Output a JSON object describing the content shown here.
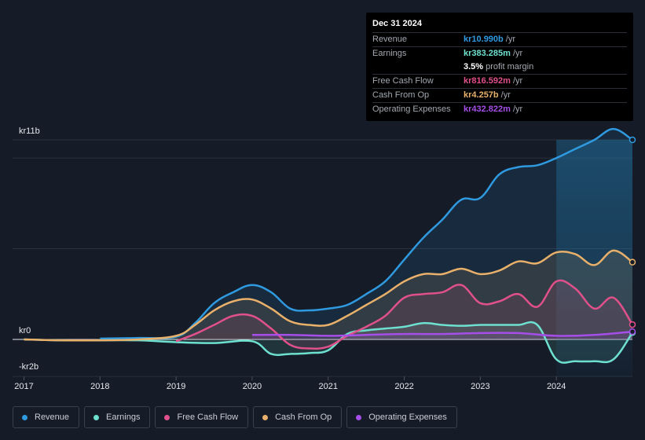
{
  "tooltip": {
    "date": "Dec 31 2024",
    "rows": [
      {
        "label": "Revenue",
        "value": "kr10.990b",
        "unit": "/yr",
        "color": "#2f9ae0"
      },
      {
        "label": "Earnings",
        "value": "kr383.285m",
        "unit": "/yr",
        "color": "#6ee0cf"
      },
      {
        "label": "",
        "value": "3.5%",
        "unit": "profit margin",
        "color": "#ffffff"
      },
      {
        "label": "Free Cash Flow",
        "value": "kr816.592m",
        "unit": "/yr",
        "color": "#e0508a"
      },
      {
        "label": "Cash From Op",
        "value": "kr4.257b",
        "unit": "/yr",
        "color": "#e8b06a"
      },
      {
        "label": "Operating Expenses",
        "value": "kr432.822m",
        "unit": "/yr",
        "color": "#a54ee8"
      }
    ]
  },
  "legend": [
    {
      "label": "Revenue",
      "color": "#2f9ae0"
    },
    {
      "label": "Earnings",
      "color": "#6ee0cf"
    },
    {
      "label": "Free Cash Flow",
      "color": "#e0508a"
    },
    {
      "label": "Cash From Op",
      "color": "#e8b06a"
    },
    {
      "label": "Operating Expenses",
      "color": "#a54ee8"
    }
  ],
  "chart_data": {
    "type": "area",
    "title": "",
    "xlabel": "",
    "ylabel": "",
    "units": "kr (billions)",
    "y_tick_labels": [
      "kr11b",
      "kr0",
      "-kr2b"
    ],
    "ylim": [
      -2,
      11
    ],
    "xlim": [
      2016.85,
      2025.0
    ],
    "x_tick_labels": [
      "2017",
      "2018",
      "2019",
      "2020",
      "2021",
      "2022",
      "2023",
      "2024"
    ],
    "x_ticks": [
      2017,
      2018,
      2019,
      2020,
      2021,
      2022,
      2023,
      2024
    ],
    "highlight_from": 2024.0,
    "series": [
      {
        "name": "Revenue",
        "color": "#2f9ae0",
        "x": [
          2018.0,
          2018.5,
          2019.0,
          2019.25,
          2019.5,
          2019.75,
          2020.0,
          2020.25,
          2020.5,
          2020.75,
          2021.0,
          2021.25,
          2021.5,
          2021.75,
          2022.0,
          2022.25,
          2022.5,
          2022.75,
          2023.0,
          2023.25,
          2023.5,
          2023.75,
          2024.0,
          2024.25,
          2024.5,
          2024.75,
          2025.0
        ],
        "values": [
          0.05,
          0.08,
          0.15,
          0.9,
          2.0,
          2.6,
          3.0,
          2.6,
          1.7,
          1.6,
          1.7,
          1.9,
          2.5,
          3.2,
          4.4,
          5.6,
          6.6,
          7.7,
          7.8,
          9.1,
          9.5,
          9.6,
          10.0,
          10.5,
          11.0,
          11.6,
          11.0
        ]
      },
      {
        "name": "Earnings",
        "color": "#6ee0cf",
        "x": [
          2017.0,
          2017.5,
          2018.0,
          2018.5,
          2019.0,
          2019.5,
          2020.0,
          2020.25,
          2020.5,
          2020.75,
          2021.0,
          2021.25,
          2021.5,
          2021.75,
          2022.0,
          2022.25,
          2022.5,
          2022.75,
          2023.0,
          2023.25,
          2023.5,
          2023.75,
          2024.0,
          2024.25,
          2024.5,
          2024.75,
          2025.0
        ],
        "values": [
          0.0,
          -0.05,
          -0.05,
          -0.05,
          -0.15,
          -0.2,
          -0.1,
          -0.8,
          -0.8,
          -0.75,
          -0.6,
          0.3,
          0.5,
          0.6,
          0.7,
          0.9,
          0.8,
          0.75,
          0.8,
          0.8,
          0.8,
          0.8,
          -1.1,
          -1.2,
          -1.2,
          -1.1,
          0.38
        ]
      },
      {
        "name": "Free Cash Flow",
        "color": "#e0508a",
        "x": [
          2019.0,
          2019.25,
          2019.5,
          2019.75,
          2020.0,
          2020.25,
          2020.5,
          2020.75,
          2021.0,
          2021.25,
          2021.5,
          2021.75,
          2022.0,
          2022.25,
          2022.5,
          2022.75,
          2023.0,
          2023.25,
          2023.5,
          2023.75,
          2024.0,
          2024.25,
          2024.5,
          2024.75,
          2025.0
        ],
        "values": [
          -0.1,
          0.3,
          0.8,
          1.3,
          1.3,
          0.6,
          -0.3,
          -0.5,
          -0.4,
          0.2,
          0.7,
          1.3,
          2.3,
          2.5,
          2.6,
          3.0,
          2.0,
          2.1,
          2.5,
          1.8,
          3.2,
          2.8,
          1.7,
          2.3,
          0.82
        ]
      },
      {
        "name": "Cash From Op",
        "color": "#e8b06a",
        "x": [
          2017.0,
          2017.5,
          2018.0,
          2018.5,
          2019.0,
          2019.25,
          2019.5,
          2019.75,
          2020.0,
          2020.25,
          2020.5,
          2020.75,
          2021.0,
          2021.25,
          2021.5,
          2021.75,
          2022.0,
          2022.25,
          2022.5,
          2022.75,
          2023.0,
          2023.25,
          2023.5,
          2023.75,
          2024.0,
          2024.25,
          2024.5,
          2024.75,
          2025.0
        ],
        "values": [
          0.0,
          -0.05,
          -0.05,
          0.0,
          0.2,
          0.8,
          1.6,
          2.1,
          2.2,
          1.7,
          1.0,
          0.8,
          0.8,
          1.3,
          1.9,
          2.5,
          3.2,
          3.6,
          3.6,
          3.9,
          3.6,
          3.8,
          4.3,
          4.2,
          4.8,
          4.7,
          4.1,
          4.9,
          4.26
        ]
      },
      {
        "name": "Operating Expenses",
        "color": "#a54ee8",
        "x": [
          2020.0,
          2020.5,
          2021.0,
          2021.5,
          2022.0,
          2022.5,
          2023.0,
          2023.5,
          2024.0,
          2024.5,
          2025.0
        ],
        "values": [
          0.25,
          0.25,
          0.2,
          0.25,
          0.3,
          0.3,
          0.35,
          0.35,
          0.2,
          0.25,
          0.43
        ]
      }
    ]
  }
}
